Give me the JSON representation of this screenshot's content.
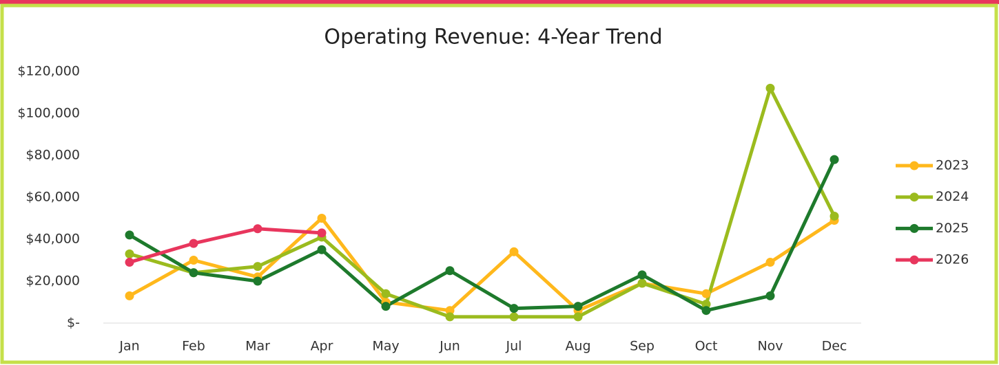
{
  "chart_data": {
    "type": "line",
    "title": "Operating Revenue: 4-Year Trend",
    "categories": [
      "Jan",
      "Feb",
      "Mar",
      "Apr",
      "May",
      "Jun",
      "Jul",
      "Aug",
      "Sep",
      "Oct",
      "Nov",
      "Dec"
    ],
    "series": [
      {
        "name": "2023",
        "color": "#ffb81c",
        "values": [
          13000,
          30000,
          22000,
          50000,
          10000,
          6000,
          34000,
          6000,
          19000,
          14000,
          29000,
          49000
        ]
      },
      {
        "name": "2024",
        "color": "#9bbb1e",
        "values": [
          33000,
          24000,
          27000,
          41000,
          14000,
          3000,
          3000,
          3000,
          19000,
          9000,
          112000,
          51000
        ]
      },
      {
        "name": "2025",
        "color": "#1e7a2c",
        "values": [
          42000,
          24000,
          20000,
          35000,
          8000,
          25000,
          7000,
          8000,
          23000,
          6000,
          13000,
          78000
        ]
      },
      {
        "name": "2026",
        "color": "#e8365d",
        "values": [
          29000,
          38000,
          45000,
          43000,
          null,
          null,
          null,
          null,
          null,
          null,
          null,
          null
        ]
      }
    ],
    "ylim": [
      0,
      120000
    ],
    "yticks": [
      {
        "value": 0,
        "label": "$-"
      },
      {
        "value": 20000,
        "label": "$20,000"
      },
      {
        "value": 40000,
        "label": "$40,000"
      },
      {
        "value": 60000,
        "label": "$60,000"
      },
      {
        "value": 80000,
        "label": "$80,000"
      },
      {
        "value": 100000,
        "label": "$100,000"
      },
      {
        "value": 120000,
        "label": "$120,000"
      }
    ],
    "grid": false,
    "legend": "right"
  }
}
